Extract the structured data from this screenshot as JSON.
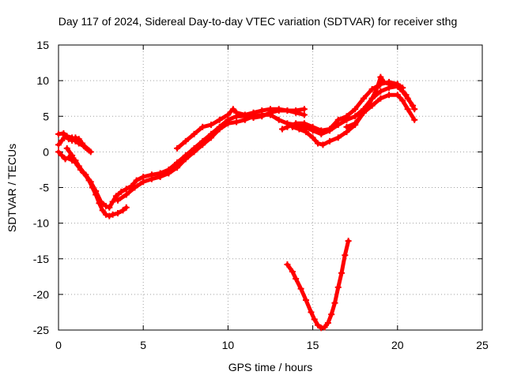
{
  "chart_data": {
    "type": "scatter",
    "title": "Day 117 of 2024, Sidereal Day-to-day VTEC variation (SDTVAR) for receiver sthg",
    "xlabel": "GPS time / hours",
    "ylabel": "SDTVAR / TECUs",
    "xlim": [
      0,
      25
    ],
    "ylim": [
      -25,
      15
    ],
    "xticks": [
      "0",
      "5",
      "10",
      "15",
      "20",
      "25"
    ],
    "yticks": [
      "15",
      "10",
      "5",
      "0",
      "-5",
      "-10",
      "-15",
      "-20",
      "-25"
    ],
    "grid": true,
    "marker_color": "#ff0000",
    "series": [
      {
        "points": [
          [
            0.0,
            2.5
          ],
          [
            0.3,
            2.6
          ],
          [
            0.5,
            2.2
          ],
          [
            0.8,
            2.0
          ],
          [
            1.0,
            1.5
          ],
          [
            1.2,
            1.2
          ],
          [
            1.5,
            0.8
          ],
          [
            1.7,
            0.4
          ],
          [
            1.9,
            0.0
          ]
        ]
      },
      {
        "points": [
          [
            0.0,
            1.0
          ],
          [
            0.2,
            1.6
          ],
          [
            0.4,
            2.2
          ],
          [
            0.6,
            1.8
          ],
          [
            0.8,
            1.6
          ],
          [
            1.0,
            2.0
          ],
          [
            1.2,
            1.8
          ],
          [
            1.4,
            1.2
          ],
          [
            1.6,
            0.6
          ],
          [
            1.8,
            0.2
          ]
        ]
      },
      {
        "points": [
          [
            0.0,
            0.0
          ],
          [
            0.2,
            -0.5
          ],
          [
            0.4,
            -1.0
          ],
          [
            0.6,
            -0.8
          ],
          [
            0.8,
            -1.2
          ],
          [
            1.0,
            -1.2
          ],
          [
            1.2,
            -2.0
          ],
          [
            1.5,
            -3.0
          ],
          [
            1.8,
            -4.0
          ],
          [
            2.0,
            -5.0
          ],
          [
            2.2,
            -6.0
          ],
          [
            2.4,
            -7.2
          ],
          [
            2.6,
            -8.2
          ],
          [
            2.8,
            -8.8
          ],
          [
            3.0,
            -9.0
          ],
          [
            3.2,
            -8.8
          ],
          [
            3.5,
            -8.6
          ],
          [
            3.8,
            -8.2
          ],
          [
            4.0,
            -7.8
          ]
        ]
      },
      {
        "points": [
          [
            0.5,
            0.5
          ],
          [
            0.8,
            -0.5
          ],
          [
            1.0,
            -1.5
          ],
          [
            1.3,
            -2.5
          ],
          [
            1.6,
            -3.2
          ],
          [
            1.9,
            -4.2
          ],
          [
            2.2,
            -5.5
          ],
          [
            2.5,
            -7.0
          ],
          [
            2.8,
            -7.6
          ],
          [
            3.0,
            -7.8
          ],
          [
            3.2,
            -7.0
          ],
          [
            3.4,
            -6.2
          ],
          [
            3.7,
            -5.6
          ],
          [
            4.0,
            -5.2
          ],
          [
            4.3,
            -4.8
          ],
          [
            4.6,
            -4.0
          ],
          [
            5.0,
            -3.5
          ],
          [
            5.5,
            -3.2
          ],
          [
            6.0,
            -3.0
          ],
          [
            6.5,
            -2.5
          ],
          [
            7.0,
            -1.5
          ],
          [
            7.5,
            -0.5
          ],
          [
            8.0,
            0.5
          ],
          [
            8.5,
            1.5
          ],
          [
            9.0,
            2.5
          ],
          [
            9.5,
            3.5
          ],
          [
            10.0,
            4.5
          ],
          [
            10.5,
            5.0
          ],
          [
            11.0,
            5.0
          ],
          [
            11.5,
            4.8
          ],
          [
            12.0,
            5.0
          ],
          [
            12.5,
            5.5
          ],
          [
            13.0,
            5.8
          ],
          [
            13.5,
            5.8
          ],
          [
            14.0,
            5.5
          ],
          [
            14.5,
            5.2
          ]
        ]
      },
      {
        "points": [
          [
            3.5,
            -6.8
          ],
          [
            4.0,
            -6.0
          ],
          [
            4.5,
            -5.0
          ],
          [
            5.0,
            -4.2
          ],
          [
            5.5,
            -3.8
          ],
          [
            6.0,
            -3.5
          ],
          [
            6.5,
            -3.0
          ],
          [
            7.0,
            -2.2
          ],
          [
            7.5,
            -1.0
          ],
          [
            8.0,
            0.0
          ],
          [
            8.5,
            1.0
          ],
          [
            9.0,
            2.0
          ],
          [
            9.5,
            3.2
          ],
          [
            10.0,
            4.0
          ],
          [
            10.5,
            4.2
          ],
          [
            11.0,
            4.5
          ],
          [
            11.5,
            5.0
          ],
          [
            12.0,
            5.2
          ],
          [
            12.5,
            5.2
          ],
          [
            13.0,
            4.5
          ],
          [
            13.5,
            4.0
          ],
          [
            14.0,
            3.8
          ],
          [
            14.5,
            3.5
          ],
          [
            15.0,
            3.0
          ],
          [
            15.5,
            2.5
          ],
          [
            16.0,
            3.0
          ],
          [
            16.5,
            3.8
          ],
          [
            17.0,
            4.5
          ],
          [
            17.5,
            5.0
          ],
          [
            18.0,
            6.0
          ],
          [
            18.5,
            7.5
          ],
          [
            19.0,
            8.5
          ],
          [
            19.5,
            9.0
          ],
          [
            20.0,
            9.2
          ],
          [
            20.3,
            8.5
          ],
          [
            20.6,
            7.5
          ],
          [
            20.9,
            6.5
          ]
        ]
      },
      {
        "points": [
          [
            7.0,
            0.5
          ],
          [
            7.5,
            1.5
          ],
          [
            8.0,
            2.5
          ],
          [
            8.5,
            3.5
          ],
          [
            9.0,
            3.8
          ],
          [
            9.5,
            4.5
          ],
          [
            10.0,
            5.2
          ],
          [
            10.3,
            6.0
          ],
          [
            10.5,
            5.5
          ],
          [
            11.0,
            5.2
          ],
          [
            11.5,
            5.5
          ],
          [
            12.0,
            5.8
          ],
          [
            12.5,
            6.0
          ],
          [
            13.0,
            6.0
          ],
          [
            13.5,
            5.8
          ],
          [
            14.0,
            5.8
          ],
          [
            14.5,
            6.0
          ]
        ]
      },
      {
        "points": [
          [
            13.2,
            3.2
          ],
          [
            13.5,
            3.5
          ],
          [
            14.0,
            4.0
          ],
          [
            14.5,
            4.0
          ],
          [
            15.0,
            3.5
          ],
          [
            15.5,
            3.0
          ],
          [
            16.0,
            3.2
          ],
          [
            16.5,
            4.5
          ],
          [
            17.0,
            5.0
          ],
          [
            17.5,
            6.0
          ],
          [
            18.0,
            7.5
          ],
          [
            18.5,
            8.8
          ],
          [
            19.0,
            9.5
          ],
          [
            19.5,
            9.8
          ],
          [
            20.0,
            9.5
          ],
          [
            20.3,
            9.0
          ]
        ]
      },
      {
        "points": [
          [
            13.8,
            3.5
          ],
          [
            14.2,
            3.2
          ],
          [
            14.6,
            2.8
          ],
          [
            15.0,
            2.0
          ],
          [
            15.3,
            1.2
          ],
          [
            15.6,
            1.0
          ],
          [
            16.0,
            1.5
          ],
          [
            16.5,
            2.0
          ],
          [
            17.0,
            2.8
          ],
          [
            17.5,
            3.8
          ],
          [
            18.0,
            5.5
          ],
          [
            18.5,
            7.5
          ],
          [
            18.8,
            9.0
          ],
          [
            19.0,
            10.5
          ],
          [
            19.2,
            9.8
          ],
          [
            19.5,
            9.5
          ],
          [
            20.0,
            9.5
          ],
          [
            20.2,
            8.8
          ],
          [
            20.5,
            8.0
          ],
          [
            21.0,
            6.0
          ]
        ]
      },
      {
        "points": [
          [
            17.0,
            3.5
          ],
          [
            17.5,
            4.0
          ],
          [
            18.0,
            5.5
          ],
          [
            18.5,
            6.5
          ],
          [
            19.0,
            7.5
          ],
          [
            19.5,
            8.0
          ],
          [
            20.0,
            8.0
          ],
          [
            20.3,
            7.2
          ],
          [
            20.6,
            6.0
          ],
          [
            21.0,
            4.5
          ]
        ]
      },
      {
        "points": [
          [
            13.5,
            -15.8
          ],
          [
            13.8,
            -16.8
          ],
          [
            14.0,
            -17.8
          ],
          [
            14.3,
            -19.2
          ],
          [
            14.6,
            -20.8
          ],
          [
            14.9,
            -22.5
          ],
          [
            15.1,
            -23.5
          ],
          [
            15.3,
            -24.3
          ],
          [
            15.5,
            -24.7
          ],
          [
            15.7,
            -24.6
          ],
          [
            15.9,
            -24.0
          ],
          [
            16.1,
            -22.8
          ],
          [
            16.3,
            -21.2
          ],
          [
            16.5,
            -19.0
          ],
          [
            16.7,
            -17.0
          ],
          [
            16.9,
            -14.5
          ],
          [
            17.1,
            -12.5
          ]
        ]
      }
    ]
  }
}
